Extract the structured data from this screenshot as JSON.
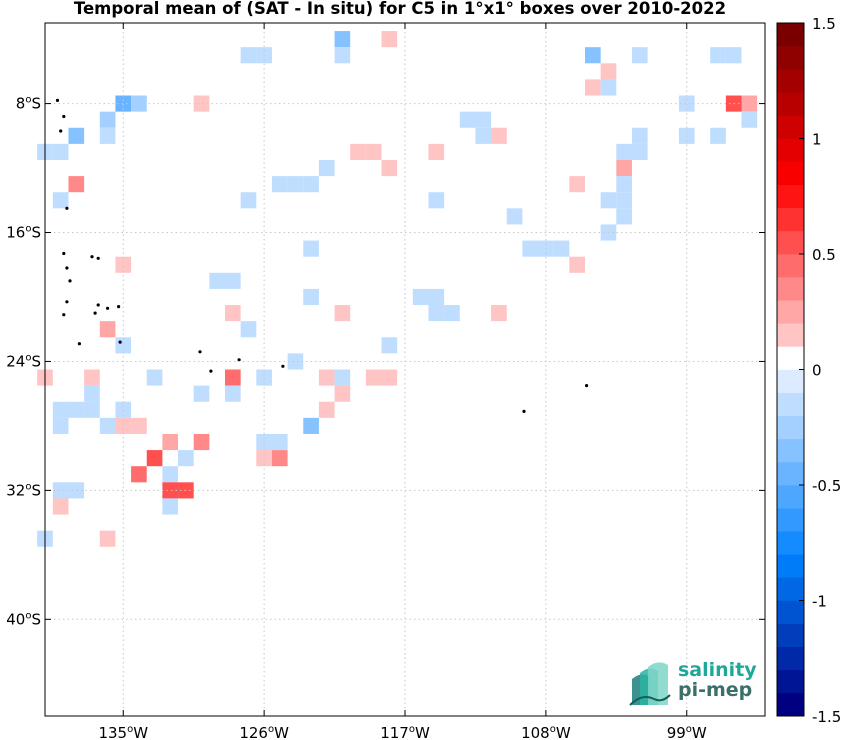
{
  "title": "Temporal mean of (SAT - In situ) for C5 in 1°x1° boxes over 2010-2022",
  "logo": {
    "line1": "salinity",
    "line2": "pi-mep",
    "icon": "pi-mep-logo-icon"
  },
  "colors": {
    "grid": "#c8c8c8",
    "island": "#000000",
    "frame": "#000000"
  },
  "colorbar": {
    "min": -1.5,
    "max": 1.5,
    "step": 0.1,
    "ticks": [
      {
        "value": 1.5,
        "label": "1.5"
      },
      {
        "value": 1,
        "label": "1"
      },
      {
        "value": 0.5,
        "label": "0.5"
      },
      {
        "value": 0,
        "label": "0"
      },
      {
        "value": -0.5,
        "label": "-0.5"
      },
      {
        "value": -1,
        "label": "-1"
      },
      {
        "value": -1.5,
        "label": "-1.5"
      }
    ]
  },
  "chart_data": {
    "type": "heatmap",
    "title": "Temporal mean of (SAT - In situ) for C5 in 1°x1° boxes over 2010-2022",
    "xlim": [
      -140,
      -94
    ],
    "ylim": [
      -46,
      -3
    ],
    "x_ticks": [
      {
        "value": -135,
        "label": "135°W"
      },
      {
        "value": -126,
        "label": "126°W"
      },
      {
        "value": -117,
        "label": "117°W"
      },
      {
        "value": -108,
        "label": "108°W"
      },
      {
        "value": -99,
        "label": "99°W"
      }
    ],
    "y_ticks": [
      {
        "value": -8,
        "label": "8°S"
      },
      {
        "value": -16,
        "label": "16°S"
      },
      {
        "value": -24,
        "label": "24°S"
      },
      {
        "value": -32,
        "label": "32°S"
      },
      {
        "value": -40,
        "label": "40°S"
      }
    ],
    "value_units": "psu",
    "cells": [
      {
        "lon": -127.0,
        "lat": -5.0,
        "value": -0.1
      },
      {
        "lon": -126.0,
        "lat": -5.0,
        "value": -0.1
      },
      {
        "lon": -121.0,
        "lat": -4.0,
        "value": -0.3
      },
      {
        "lon": -121.0,
        "lat": -5.0,
        "value": -0.1
      },
      {
        "lon": -118.0,
        "lat": -4.0,
        "value": 0.1
      },
      {
        "lon": -105.0,
        "lat": -5.0,
        "value": -0.3
      },
      {
        "lon": -102.0,
        "lat": -5.0,
        "value": -0.1
      },
      {
        "lon": -97.0,
        "lat": -5.0,
        "value": -0.1
      },
      {
        "lon": -96.0,
        "lat": -5.0,
        "value": -0.1
      },
      {
        "lon": -104.0,
        "lat": -6.0,
        "value": 0.1
      },
      {
        "lon": -105.0,
        "lat": -7.0,
        "value": 0.1
      },
      {
        "lon": -104.0,
        "lat": -7.0,
        "value": -0.1
      },
      {
        "lon": -135.0,
        "lat": -8.0,
        "value": -0.4
      },
      {
        "lon": -134.0,
        "lat": -8.0,
        "value": -0.2
      },
      {
        "lon": -130.0,
        "lat": -8.0,
        "value": 0.1
      },
      {
        "lon": -99.0,
        "lat": -8.0,
        "value": -0.1
      },
      {
        "lon": -96.0,
        "lat": -8.0,
        "value": 0.5
      },
      {
        "lon": -95.0,
        "lat": -8.0,
        "value": 0.2
      },
      {
        "lon": -136.0,
        "lat": -9.0,
        "value": -0.2
      },
      {
        "lon": -113.0,
        "lat": -9.0,
        "value": -0.1
      },
      {
        "lon": -112.0,
        "lat": -9.0,
        "value": -0.1
      },
      {
        "lon": -95.0,
        "lat": -9.0,
        "value": -0.1
      },
      {
        "lon": -138.0,
        "lat": -10.0,
        "value": -0.3
      },
      {
        "lon": -136.0,
        "lat": -10.0,
        "value": -0.1
      },
      {
        "lon": -112.0,
        "lat": -10.0,
        "value": -0.1
      },
      {
        "lon": -111.0,
        "lat": -10.0,
        "value": 0.1
      },
      {
        "lon": -102.0,
        "lat": -10.0,
        "value": -0.1
      },
      {
        "lon": -99.0,
        "lat": -10.0,
        "value": -0.1
      },
      {
        "lon": -97.0,
        "lat": -10.0,
        "value": -0.1
      },
      {
        "lon": -140.0,
        "lat": -11.0,
        "value": -0.1
      },
      {
        "lon": -139.0,
        "lat": -11.0,
        "value": -0.1
      },
      {
        "lon": -120.0,
        "lat": -11.0,
        "value": 0.1
      },
      {
        "lon": -119.0,
        "lat": -11.0,
        "value": 0.1
      },
      {
        "lon": -115.0,
        "lat": -11.0,
        "value": 0.1
      },
      {
        "lon": -103.0,
        "lat": -11.0,
        "value": -0.1
      },
      {
        "lon": -102.0,
        "lat": -11.0,
        "value": -0.1
      },
      {
        "lon": -122.0,
        "lat": -12.0,
        "value": -0.1
      },
      {
        "lon": -118.0,
        "lat": -12.0,
        "value": 0.1
      },
      {
        "lon": -103.0,
        "lat": -12.0,
        "value": 0.2
      },
      {
        "lon": -138.0,
        "lat": -13.0,
        "value": 0.3
      },
      {
        "lon": -125.0,
        "lat": -13.0,
        "value": -0.1
      },
      {
        "lon": -124.0,
        "lat": -13.0,
        "value": -0.1
      },
      {
        "lon": -123.0,
        "lat": -13.0,
        "value": -0.1
      },
      {
        "lon": -106.0,
        "lat": -13.0,
        "value": 0.1
      },
      {
        "lon": -103.0,
        "lat": -13.0,
        "value": -0.1
      },
      {
        "lon": -139.0,
        "lat": -14.0,
        "value": -0.1
      },
      {
        "lon": -127.0,
        "lat": -14.0,
        "value": -0.1
      },
      {
        "lon": -115.0,
        "lat": -14.0,
        "value": -0.1
      },
      {
        "lon": -104.0,
        "lat": -14.0,
        "value": -0.1
      },
      {
        "lon": -103.0,
        "lat": -14.0,
        "value": -0.1
      },
      {
        "lon": -110.0,
        "lat": -15.0,
        "value": -0.1
      },
      {
        "lon": -103.0,
        "lat": -15.0,
        "value": -0.1
      },
      {
        "lon": -104.0,
        "lat": -16.0,
        "value": -0.1
      },
      {
        "lon": -123.0,
        "lat": -17.0,
        "value": -0.1
      },
      {
        "lon": -109.0,
        "lat": -17.0,
        "value": -0.1
      },
      {
        "lon": -108.0,
        "lat": -17.0,
        "value": -0.1
      },
      {
        "lon": -107.0,
        "lat": -17.0,
        "value": -0.1
      },
      {
        "lon": -135.0,
        "lat": -18.0,
        "value": 0.1
      },
      {
        "lon": -106.0,
        "lat": -18.0,
        "value": 0.1
      },
      {
        "lon": -129.0,
        "lat": -19.0,
        "value": -0.1
      },
      {
        "lon": -128.0,
        "lat": -19.0,
        "value": -0.1
      },
      {
        "lon": -123.0,
        "lat": -20.0,
        "value": -0.1
      },
      {
        "lon": -116.0,
        "lat": -20.0,
        "value": -0.1
      },
      {
        "lon": -115.0,
        "lat": -20.0,
        "value": -0.1
      },
      {
        "lon": -128.0,
        "lat": -21.0,
        "value": 0.1
      },
      {
        "lon": -121.0,
        "lat": -21.0,
        "value": 0.1
      },
      {
        "lon": -115.0,
        "lat": -21.0,
        "value": -0.1
      },
      {
        "lon": -114.0,
        "lat": -21.0,
        "value": -0.1
      },
      {
        "lon": -111.0,
        "lat": -21.0,
        "value": 0.1
      },
      {
        "lon": -136.0,
        "lat": -22.0,
        "value": 0.2
      },
      {
        "lon": -127.0,
        "lat": -22.0,
        "value": -0.1
      },
      {
        "lon": -135.0,
        "lat": -23.0,
        "value": -0.1
      },
      {
        "lon": -118.0,
        "lat": -23.0,
        "value": -0.1
      },
      {
        "lon": -124.0,
        "lat": -24.0,
        "value": -0.1
      },
      {
        "lon": -140.0,
        "lat": -25.0,
        "value": 0.1
      },
      {
        "lon": -137.0,
        "lat": -25.0,
        "value": 0.1
      },
      {
        "lon": -133.0,
        "lat": -25.0,
        "value": -0.1
      },
      {
        "lon": -128.0,
        "lat": -25.0,
        "value": 0.4
      },
      {
        "lon": -126.0,
        "lat": -25.0,
        "value": -0.1
      },
      {
        "lon": -122.0,
        "lat": -25.0,
        "value": 0.1
      },
      {
        "lon": -121.0,
        "lat": -25.0,
        "value": -0.1
      },
      {
        "lon": -119.0,
        "lat": -25.0,
        "value": 0.1
      },
      {
        "lon": -118.0,
        "lat": -25.0,
        "value": 0.1
      },
      {
        "lon": -137.0,
        "lat": -26.0,
        "value": -0.1
      },
      {
        "lon": -130.0,
        "lat": -26.0,
        "value": -0.1
      },
      {
        "lon": -128.0,
        "lat": -26.0,
        "value": -0.1
      },
      {
        "lon": -121.0,
        "lat": -26.0,
        "value": 0.1
      },
      {
        "lon": -139.0,
        "lat": -27.0,
        "value": -0.1
      },
      {
        "lon": -138.0,
        "lat": -27.0,
        "value": -0.1
      },
      {
        "lon": -137.0,
        "lat": -27.0,
        "value": -0.1
      },
      {
        "lon": -135.0,
        "lat": -27.0,
        "value": -0.1
      },
      {
        "lon": -122.0,
        "lat": -27.0,
        "value": 0.1
      },
      {
        "lon": -139.0,
        "lat": -28.0,
        "value": -0.1
      },
      {
        "lon": -136.0,
        "lat": -28.0,
        "value": -0.1
      },
      {
        "lon": -135.0,
        "lat": -28.0,
        "value": 0.1
      },
      {
        "lon": -134.0,
        "lat": -28.0,
        "value": 0.1
      },
      {
        "lon": -123.0,
        "lat": -28.0,
        "value": -0.3
      },
      {
        "lon": -132.0,
        "lat": -29.0,
        "value": 0.2
      },
      {
        "lon": -130.0,
        "lat": -29.0,
        "value": 0.3
      },
      {
        "lon": -126.0,
        "lat": -29.0,
        "value": -0.1
      },
      {
        "lon": -125.0,
        "lat": -29.0,
        "value": -0.1
      },
      {
        "lon": -133.0,
        "lat": -30.0,
        "value": 0.5
      },
      {
        "lon": -131.0,
        "lat": -30.0,
        "value": -0.1
      },
      {
        "lon": -126.0,
        "lat": -30.0,
        "value": 0.1
      },
      {
        "lon": -125.0,
        "lat": -30.0,
        "value": 0.3
      },
      {
        "lon": -134.0,
        "lat": -31.0,
        "value": 0.4
      },
      {
        "lon": -132.0,
        "lat": -31.0,
        "value": -0.1
      },
      {
        "lon": -139.0,
        "lat": -32.0,
        "value": -0.1
      },
      {
        "lon": -138.0,
        "lat": -32.0,
        "value": -0.1
      },
      {
        "lon": -132.0,
        "lat": -32.0,
        "value": 0.5
      },
      {
        "lon": -131.0,
        "lat": -32.0,
        "value": 0.5
      },
      {
        "lon": -139.0,
        "lat": -33.0,
        "value": 0.1
      },
      {
        "lon": -132.0,
        "lat": -33.0,
        "value": -0.1
      },
      {
        "lon": -140.0,
        "lat": -35.0,
        "value": -0.1
      },
      {
        "lon": -136.0,
        "lat": -35.0,
        "value": 0.1
      }
    ],
    "islands": [
      {
        "lon": -139.2,
        "lat": -7.8
      },
      {
        "lon": -138.8,
        "lat": -8.8
      },
      {
        "lon": -139.0,
        "lat": -9.7
      },
      {
        "lon": -138.6,
        "lat": -14.5
      },
      {
        "lon": -138.8,
        "lat": -17.3
      },
      {
        "lon": -137.0,
        "lat": -17.5
      },
      {
        "lon": -136.6,
        "lat": -17.6
      },
      {
        "lon": -138.6,
        "lat": -18.2
      },
      {
        "lon": -138.4,
        "lat": -19.0
      },
      {
        "lon": -138.6,
        "lat": -20.3
      },
      {
        "lon": -136.6,
        "lat": -20.5
      },
      {
        "lon": -136.0,
        "lat": -20.7
      },
      {
        "lon": -135.3,
        "lat": -20.6
      },
      {
        "lon": -138.8,
        "lat": -21.1
      },
      {
        "lon": -136.8,
        "lat": -21.0
      },
      {
        "lon": -135.2,
        "lat": -22.8
      },
      {
        "lon": -137.8,
        "lat": -22.9
      },
      {
        "lon": -130.1,
        "lat": -23.4
      },
      {
        "lon": -127.6,
        "lat": -23.9
      },
      {
        "lon": -124.8,
        "lat": -24.3
      },
      {
        "lon": -129.4,
        "lat": -24.6
      },
      {
        "lon": -109.4,
        "lat": -27.1
      },
      {
        "lon": -105.4,
        "lat": -25.5
      }
    ]
  }
}
